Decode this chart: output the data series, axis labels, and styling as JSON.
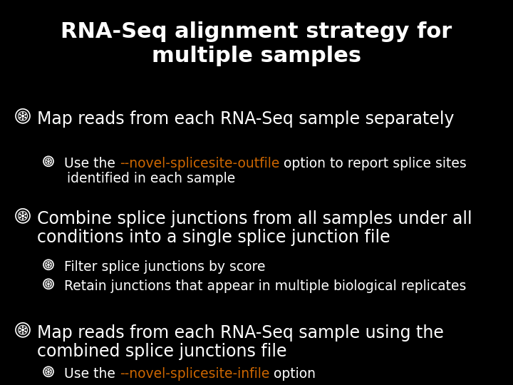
{
  "title_line1": "RNA-Seq alignment strategy for",
  "title_line2": "multiple samples",
  "background_color": "#000000",
  "title_color": "#ffffff",
  "title_fontsize": 22,
  "bullet_color": "#ffffff",
  "bullet_fontsize": 17,
  "sub_bullet_fontsize": 13.5,
  "highlight_color": "#cc6600",
  "items": [
    {
      "level": 0,
      "lines": [
        [
          "Map reads from each RNA-Seq sample separately",
          false
        ]
      ]
    },
    {
      "level": 1,
      "lines": [
        [
          [
            "Use the ",
            false
          ],
          [
            "--novel-splicesite-outfile",
            true
          ],
          [
            " option to report splice sites",
            false
          ]
        ],
        [
          [
            "identified in each sample",
            false
          ]
        ]
      ]
    },
    {
      "level": 0,
      "lines": [
        [
          [
            "Combine splice junctions from all samples under all",
            false
          ]
        ],
        [
          [
            "conditions into a single splice junction file",
            false
          ]
        ]
      ]
    },
    {
      "level": 1,
      "lines": [
        [
          [
            "Filter splice junctions by score",
            false
          ]
        ]
      ]
    },
    {
      "level": 1,
      "lines": [
        [
          [
            "Retain junctions that appear in multiple biological replicates",
            false
          ]
        ]
      ]
    },
    {
      "level": 0,
      "lines": [
        [
          [
            "Map reads from each RNA-Seq sample using the",
            false
          ]
        ],
        [
          [
            "combined splice junctions file",
            false
          ]
        ]
      ]
    },
    {
      "level": 1,
      "lines": [
        [
          [
            "Use the ",
            false
          ],
          [
            "--novel-splicesite-infile",
            true
          ],
          [
            " option",
            false
          ]
        ]
      ]
    }
  ]
}
